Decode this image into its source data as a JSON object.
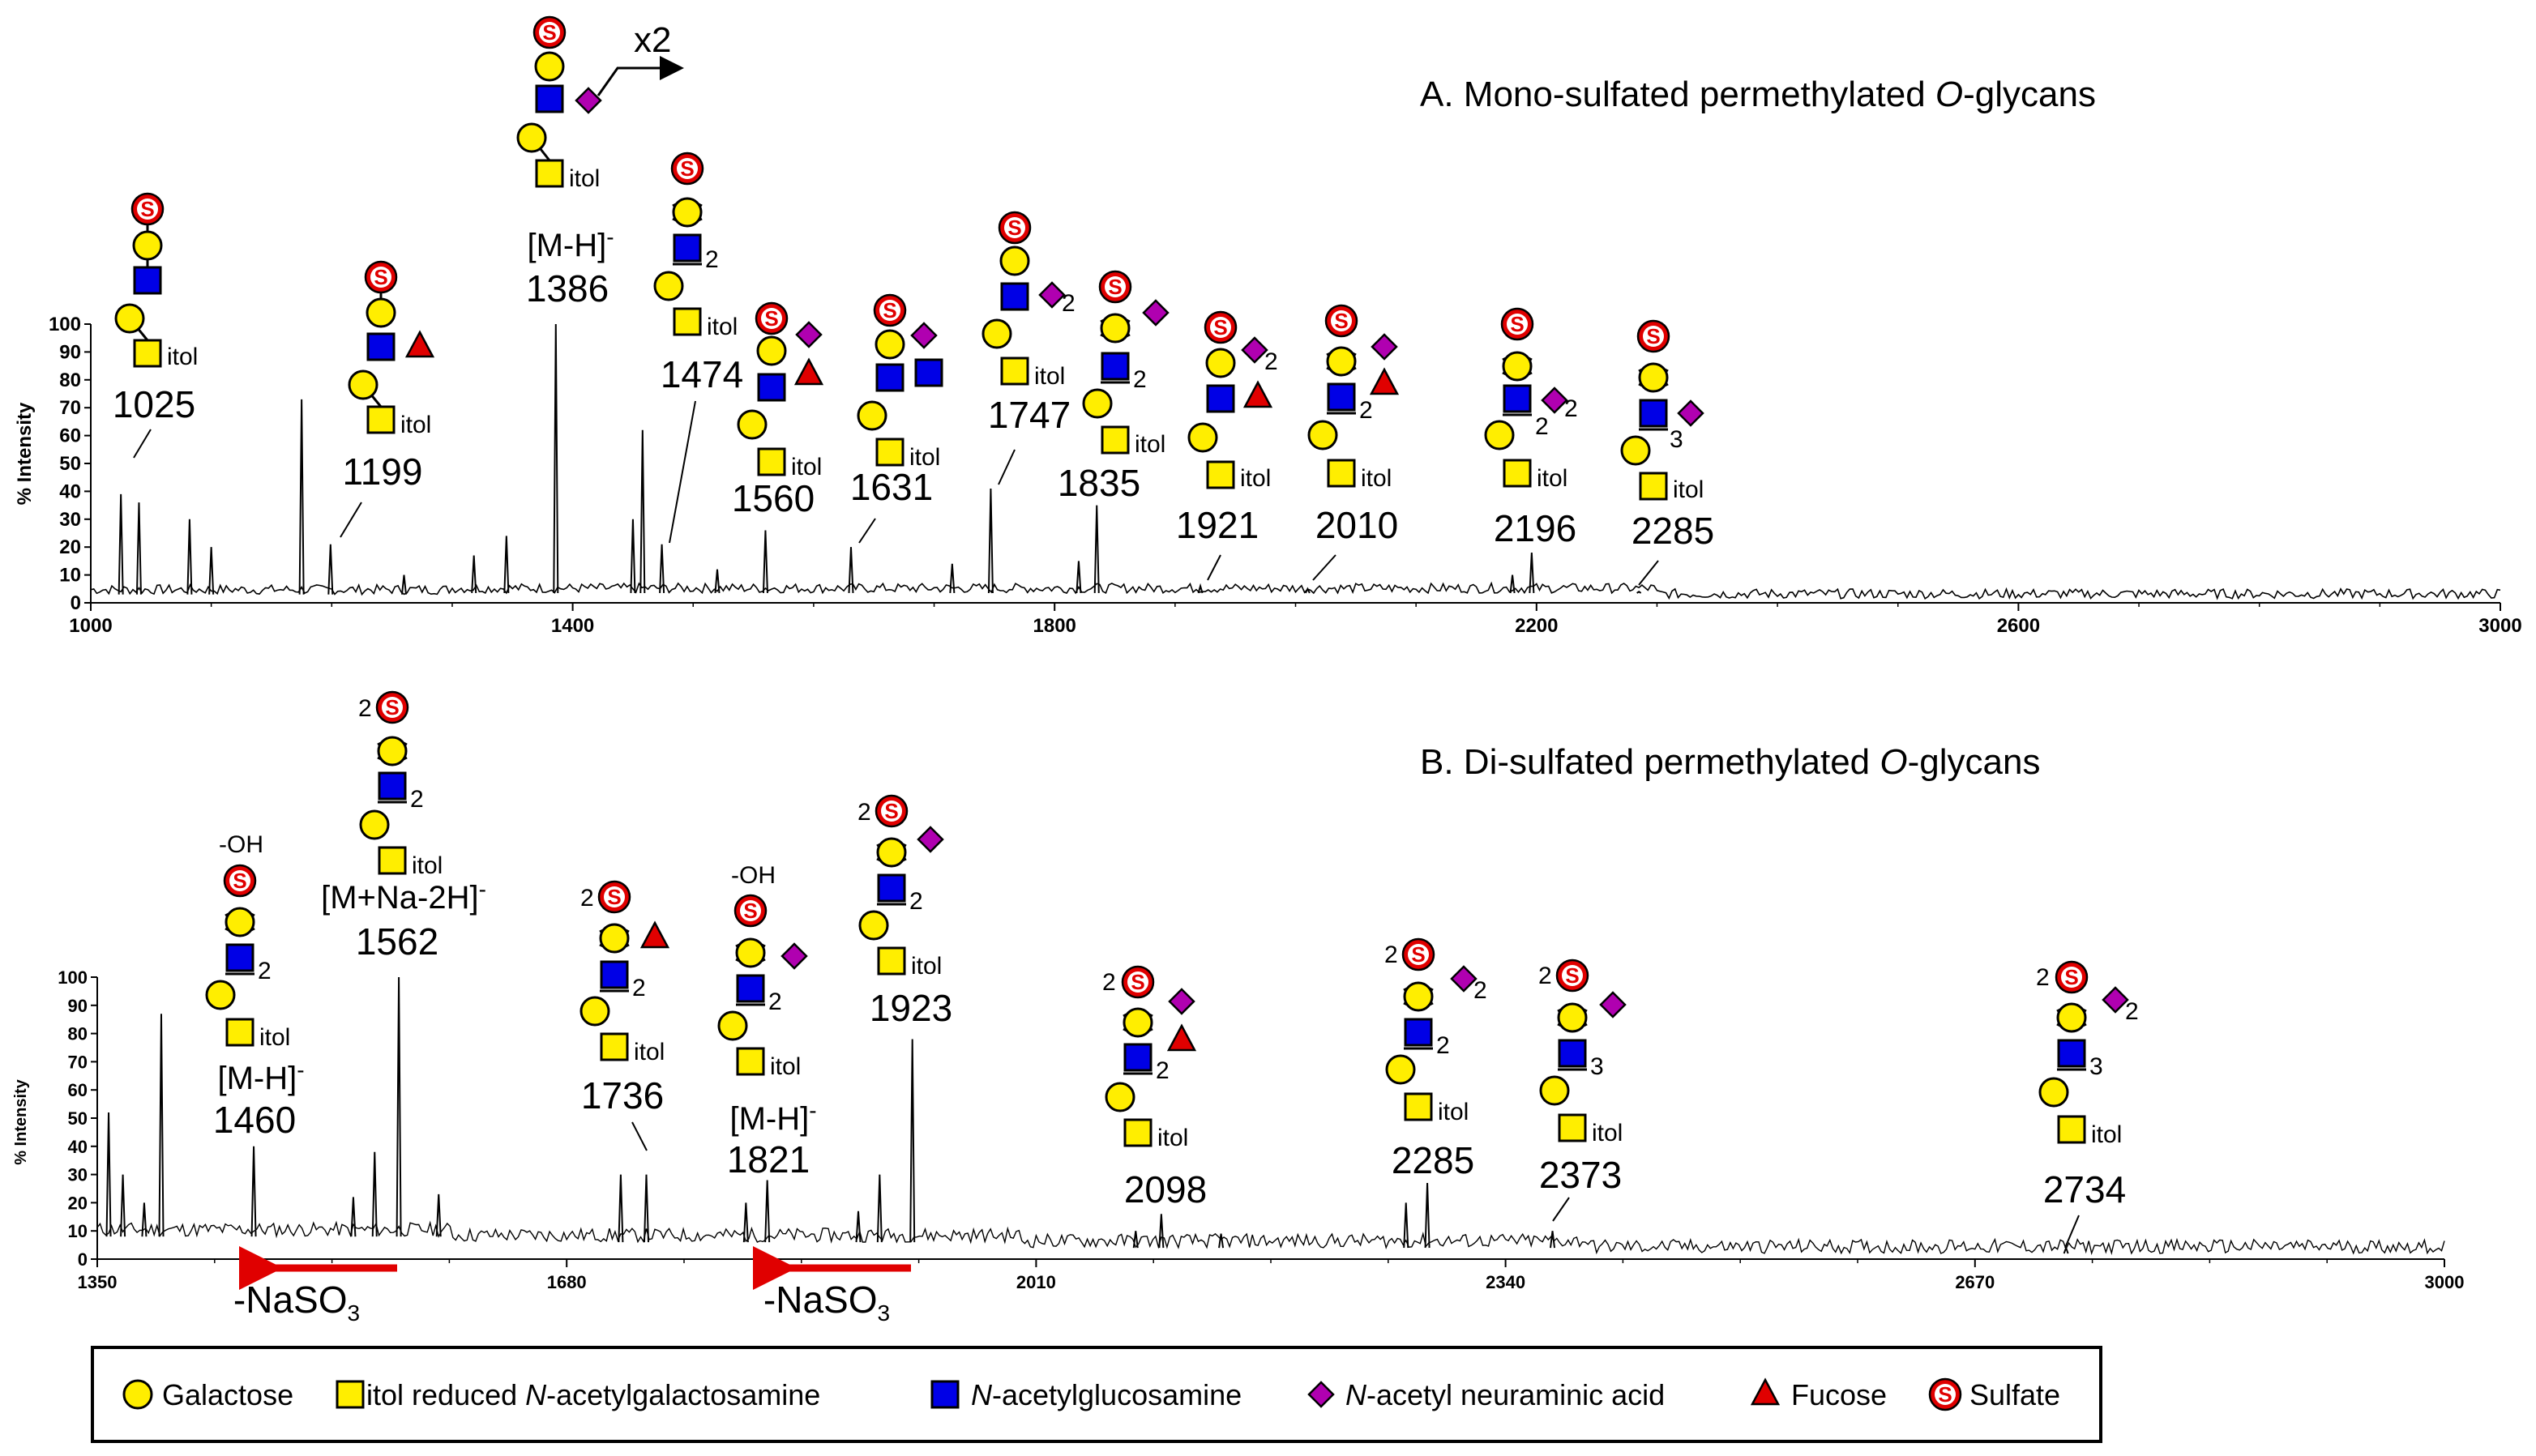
{
  "colors": {
    "galactose": "#ffee00",
    "galnac_itol": "#ffee00",
    "glcnac": "#0000e6",
    "neuac": "#b000b0",
    "fucose": "#e00000",
    "sulfate": "#e00000",
    "ion_blue": "#1a3ad0",
    "ion_red": "#e00000",
    "arrow_red": "#e00000",
    "trace": "#000000"
  },
  "legend": {
    "items": [
      {
        "symbol": "circle",
        "label": "Galactose"
      },
      {
        "symbol": "square",
        "prefix": "itol",
        "label_pre": " reduced ",
        "label_it": "N",
        "label_post": "-acetylgalactosamine"
      },
      {
        "symbol": "square-blue",
        "label_it": "N",
        "label_post": "-acetylglucosamine"
      },
      {
        "symbol": "diamond",
        "label_it": "N",
        "label_post": "-acetyl neuraminic acid"
      },
      {
        "symbol": "triangle",
        "label": "Fucose"
      },
      {
        "symbol": "sulfate",
        "label": "Sulfate"
      }
    ]
  },
  "glyph": {
    "s": "S",
    "itol": "itol",
    "two": "2",
    "three": "3",
    "oh": "-OH",
    "x2": "x2"
  },
  "chart_data": [
    {
      "type": "line",
      "panel": "A",
      "title_prefix": "A.   Mono-sulfated permethylated ",
      "title_italic": "O",
      "title_suffix": "-glycans",
      "ylabel": "% Intensity",
      "xlim": [
        1000,
        3000
      ],
      "ylim": [
        0,
        100
      ],
      "xticks": [
        "1000",
        "1400",
        "1800",
        "2200",
        "2600",
        "3000"
      ],
      "yticks": [
        "0",
        "10",
        "20",
        "30",
        "40",
        "50",
        "60",
        "70",
        "80",
        "90",
        "100"
      ],
      "ion_label": "[M-H]-",
      "peaks": [
        {
          "x": 1025,
          "y": 39,
          "label": "1025"
        },
        {
          "x": 1040,
          "y": 36
        },
        {
          "x": 1082,
          "y": 30
        },
        {
          "x": 1100,
          "y": 20
        },
        {
          "x": 1175,
          "y": 73
        },
        {
          "x": 1199,
          "y": 21,
          "label": "1199"
        },
        {
          "x": 1260,
          "y": 10
        },
        {
          "x": 1318,
          "y": 17
        },
        {
          "x": 1345,
          "y": 24
        },
        {
          "x": 1386,
          "y": 100,
          "label": "1386"
        },
        {
          "x": 1450,
          "y": 30
        },
        {
          "x": 1458,
          "y": 62
        },
        {
          "x": 1474,
          "y": 21,
          "label": "1474"
        },
        {
          "x": 1520,
          "y": 12
        },
        {
          "x": 1560,
          "y": 26,
          "label": "1560"
        },
        {
          "x": 1631,
          "y": 20,
          "label": "1631"
        },
        {
          "x": 1715,
          "y": 14
        },
        {
          "x": 1747,
          "y": 41,
          "label": "1747"
        },
        {
          "x": 1820,
          "y": 15
        },
        {
          "x": 1835,
          "y": 35,
          "label": "1835"
        },
        {
          "x": 1921,
          "y": 6,
          "label": "1921"
        },
        {
          "x": 2010,
          "y": 5,
          "label": "2010"
        },
        {
          "x": 2180,
          "y": 10
        },
        {
          "x": 2196,
          "y": 18,
          "label": "2196"
        },
        {
          "x": 2285,
          "y": 4,
          "label": "2285"
        }
      ]
    },
    {
      "type": "line",
      "panel": "B",
      "title_prefix": "B.   Di-sulfated permethylated ",
      "title_italic": "O",
      "title_suffix": "-glycans",
      "ylabel": "% Intensity",
      "xlim": [
        1350,
        3000
      ],
      "ylim": [
        0,
        100
      ],
      "xticks": [
        "1350",
        "1680",
        "2010",
        "2340",
        "2670",
        "3000"
      ],
      "yticks": [
        "0",
        "10",
        "20",
        "30",
        "40",
        "50",
        "60",
        "70",
        "80",
        "90",
        "100"
      ],
      "ion_label_1562": "[M+Na-2H]-",
      "ion_label_red": "[M-H]-",
      "loss_label": "-NaSO3",
      "peaks": [
        {
          "x": 1358,
          "y": 52
        },
        {
          "x": 1368,
          "y": 30
        },
        {
          "x": 1383,
          "y": 20
        },
        {
          "x": 1395,
          "y": 87
        },
        {
          "x": 1460,
          "y": 40,
          "label": "1460"
        },
        {
          "x": 1530,
          "y": 22
        },
        {
          "x": 1545,
          "y": 38
        },
        {
          "x": 1562,
          "y": 100,
          "label": "1562"
        },
        {
          "x": 1590,
          "y": 23
        },
        {
          "x": 1718,
          "y": 30
        },
        {
          "x": 1736,
          "y": 30,
          "label": "1736"
        },
        {
          "x": 1806,
          "y": 20
        },
        {
          "x": 1821,
          "y": 28,
          "label": "1821"
        },
        {
          "x": 1885,
          "y": 17
        },
        {
          "x": 1900,
          "y": 30
        },
        {
          "x": 1923,
          "y": 78,
          "label": "1923"
        },
        {
          "x": 2080,
          "y": 10
        },
        {
          "x": 2098,
          "y": 16,
          "label": "2098"
        },
        {
          "x": 2140,
          "y": 9
        },
        {
          "x": 2270,
          "y": 20
        },
        {
          "x": 2285,
          "y": 27,
          "label": "2285"
        },
        {
          "x": 2373,
          "y": 10,
          "label": "2373"
        },
        {
          "x": 2734,
          "y": 4,
          "label": "2734"
        }
      ]
    }
  ]
}
